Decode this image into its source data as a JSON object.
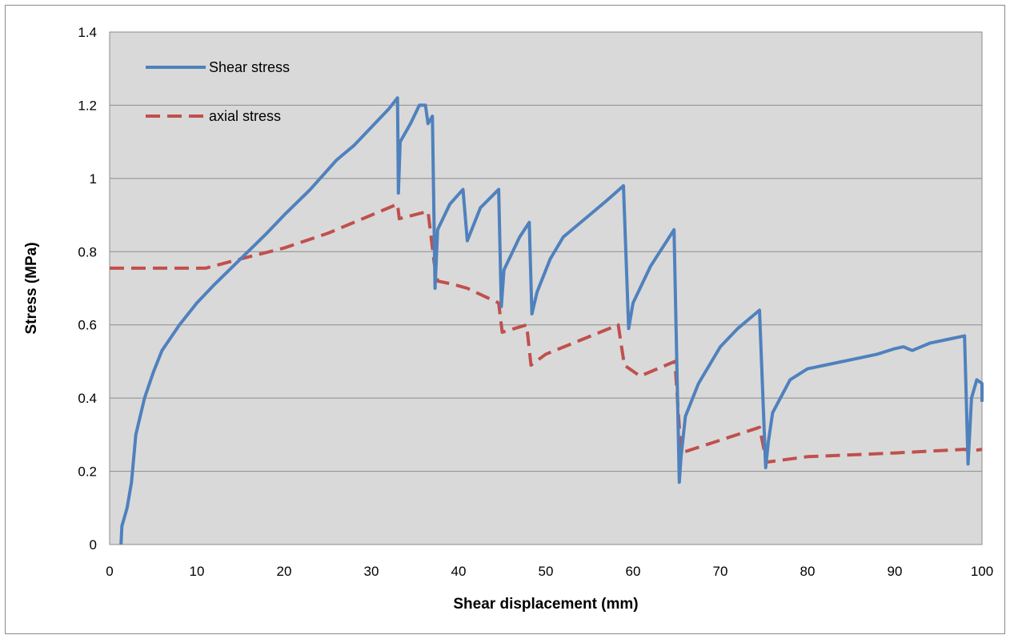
{
  "chart_data": {
    "type": "line",
    "title": "",
    "xlabel": "Shear displacement (mm)",
    "ylabel": "Stress (MPa)",
    "xlim": [
      0,
      100
    ],
    "ylim": [
      0,
      1.4
    ],
    "x_ticks": [
      "0",
      "10",
      "20",
      "30",
      "40",
      "50",
      "60",
      "70",
      "80",
      "90",
      "100"
    ],
    "y_ticks": [
      "0",
      "0.2",
      "0.4",
      "0.6",
      "0.8",
      "1",
      "1.2",
      "1.4"
    ],
    "grid": "horizontal major gridlines",
    "plot_background": "#d9d9d9",
    "legend_position": "top-left",
    "series": [
      {
        "name": "Shear stress",
        "color": "#4f81bd",
        "line_style": "solid",
        "points": [
          [
            1.3,
            0
          ],
          [
            1.4,
            0.05
          ],
          [
            2.0,
            0.1
          ],
          [
            2.5,
            0.17
          ],
          [
            3.0,
            0.3
          ],
          [
            4.0,
            0.4
          ],
          [
            5.0,
            0.47
          ],
          [
            6.0,
            0.53
          ],
          [
            8.0,
            0.6
          ],
          [
            10.0,
            0.66
          ],
          [
            12.0,
            0.71
          ],
          [
            15.0,
            0.78
          ],
          [
            18.0,
            0.85
          ],
          [
            20.0,
            0.9
          ],
          [
            23.0,
            0.97
          ],
          [
            26.0,
            1.05
          ],
          [
            28.0,
            1.09
          ],
          [
            30.0,
            1.14
          ],
          [
            32.0,
            1.19
          ],
          [
            33.0,
            1.22
          ],
          [
            33.1,
            0.96
          ],
          [
            33.3,
            1.1
          ],
          [
            34.5,
            1.15
          ],
          [
            35.5,
            1.2
          ],
          [
            36.2,
            1.2
          ],
          [
            36.5,
            1.15
          ],
          [
            37.0,
            1.17
          ],
          [
            37.3,
            0.7
          ],
          [
            37.6,
            0.86
          ],
          [
            39.0,
            0.93
          ],
          [
            40.5,
            0.97
          ],
          [
            41.0,
            0.83
          ],
          [
            42.5,
            0.92
          ],
          [
            44.6,
            0.97
          ],
          [
            44.9,
            0.65
          ],
          [
            45.2,
            0.75
          ],
          [
            47.0,
            0.84
          ],
          [
            48.1,
            0.88
          ],
          [
            48.4,
            0.63
          ],
          [
            49.0,
            0.69
          ],
          [
            50.5,
            0.78
          ],
          [
            52.0,
            0.84
          ],
          [
            55.0,
            0.9
          ],
          [
            57.0,
            0.94
          ],
          [
            58.9,
            0.98
          ],
          [
            59.5,
            0.59
          ],
          [
            60.0,
            0.66
          ],
          [
            62.0,
            0.76
          ],
          [
            64.7,
            0.86
          ],
          [
            65.3,
            0.17
          ],
          [
            65.5,
            0.24
          ],
          [
            66.0,
            0.35
          ],
          [
            67.5,
            0.44
          ],
          [
            70.0,
            0.54
          ],
          [
            72.0,
            0.59
          ],
          [
            74.5,
            0.64
          ],
          [
            75.2,
            0.21
          ],
          [
            75.5,
            0.28
          ],
          [
            76.0,
            0.36
          ],
          [
            78.0,
            0.45
          ],
          [
            80.0,
            0.48
          ],
          [
            82.0,
            0.49
          ],
          [
            86.0,
            0.51
          ],
          [
            88.0,
            0.52
          ],
          [
            90.0,
            0.535
          ],
          [
            91.0,
            0.54
          ],
          [
            92.0,
            0.53
          ],
          [
            94.0,
            0.55
          ],
          [
            96.0,
            0.56
          ],
          [
            98.0,
            0.57
          ],
          [
            98.4,
            0.22
          ],
          [
            98.8,
            0.4
          ],
          [
            99.4,
            0.45
          ],
          [
            100.0,
            0.44
          ],
          [
            100.0,
            0.39
          ]
        ]
      },
      {
        "name": "axial stress",
        "color": "#c0504d",
        "line_style": "dashed",
        "points": [
          [
            0,
            0.755
          ],
          [
            11.0,
            0.755
          ],
          [
            15.0,
            0.78
          ],
          [
            20.0,
            0.81
          ],
          [
            25.0,
            0.85
          ],
          [
            30.0,
            0.9
          ],
          [
            33.0,
            0.93
          ],
          [
            33.2,
            0.89
          ],
          [
            36.5,
            0.91
          ],
          [
            37.2,
            0.77
          ],
          [
            37.6,
            0.72
          ],
          [
            39.5,
            0.71
          ],
          [
            41.0,
            0.7
          ],
          [
            44.6,
            0.66
          ],
          [
            45.0,
            0.58
          ],
          [
            47.8,
            0.6
          ],
          [
            48.3,
            0.49
          ],
          [
            50.0,
            0.52
          ],
          [
            58.3,
            0.6
          ],
          [
            59.0,
            0.49
          ],
          [
            60.8,
            0.46
          ],
          [
            64.8,
            0.5
          ],
          [
            65.5,
            0.25
          ],
          [
            74.5,
            0.32
          ],
          [
            75.3,
            0.225
          ],
          [
            80.0,
            0.24
          ],
          [
            90.0,
            0.25
          ],
          [
            98.0,
            0.26
          ],
          [
            98.7,
            0.255
          ],
          [
            100.0,
            0.26
          ]
        ]
      }
    ]
  }
}
